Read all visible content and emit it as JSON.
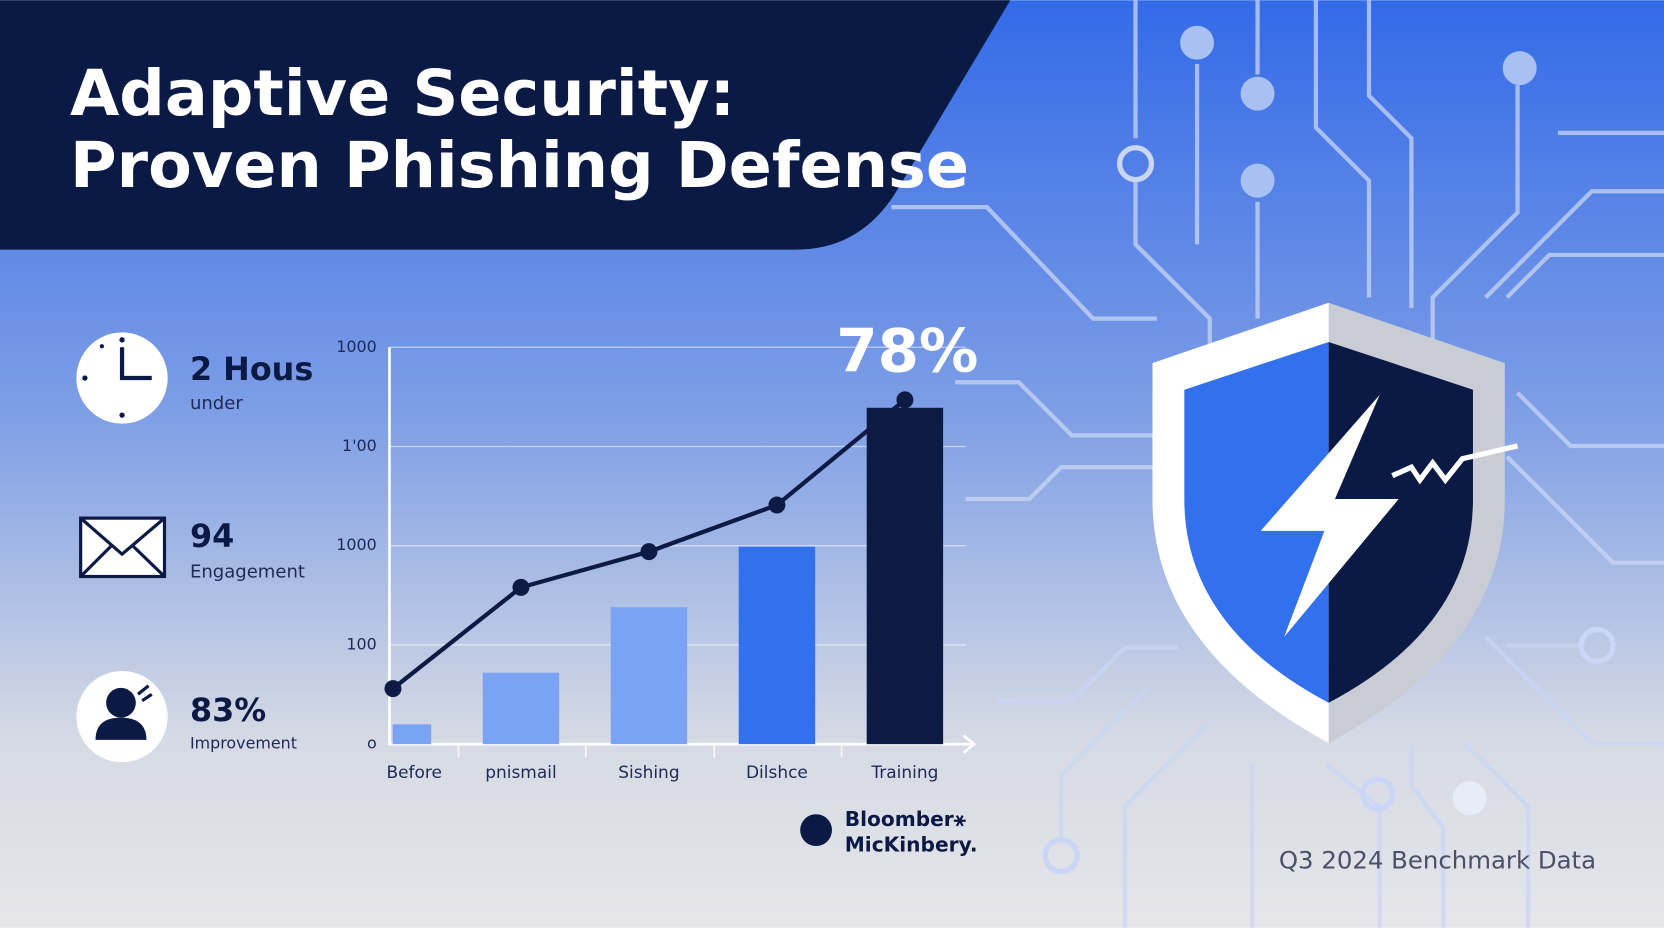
{
  "title": [
    "Adaptive Security:",
    "Proven Phishing Defense"
  ],
  "stats": [
    {
      "value": "2 Hous",
      "label": "under"
    },
    {
      "value": "94",
      "label": "Engagement"
    },
    {
      "value": "83%",
      "label": "Improvement"
    }
  ],
  "chart_data": {
    "type": "bar",
    "categories": [
      "Before",
      "pnismail",
      "Sishing",
      "Dilshce",
      "Training"
    ],
    "series": [
      {
        "type": "bar",
        "colors": [
          "#7ba3f4",
          "#7ba3f4",
          "#7ba3f4",
          "#3370ee",
          "#0c1a44"
        ],
        "values": [
          20,
          72,
          138,
          199,
          339
        ]
      },
      {
        "type": "line",
        "color": "#0c1a44",
        "values": [
          56,
          158,
          194,
          241,
          347
        ]
      }
    ],
    "ylim": [
      0,
      400
    ],
    "yticks": [
      {
        "value": 0,
        "label": "o"
      },
      100,
      {
        "value": 200,
        "label": "1000"
      },
      {
        "value": 300,
        "label": "1'00"
      },
      {
        "value": 400,
        "label": "1000"
      }
    ],
    "grid": true,
    "annotation": "78%"
  },
  "logo": [
    "Bloomber⚹",
    "MicKinbery."
  ],
  "footer": "Q3 2024 Benchmark Data"
}
